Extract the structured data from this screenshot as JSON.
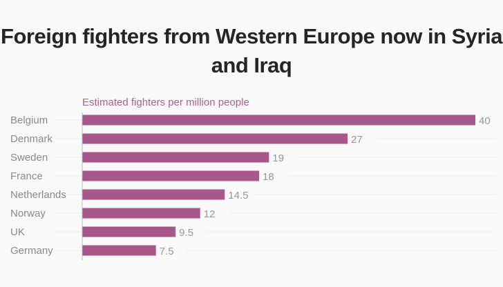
{
  "chart_data": {
    "type": "bar",
    "orientation": "horizontal",
    "title": "Foreign fighters from Western Europe now in Syria and Iraq",
    "subtitle": "Estimated fighters per million people",
    "categories": [
      "Belgium",
      "Denmark",
      "Sweden",
      "France",
      "Netherlands",
      "Norway",
      "UK",
      "Germany"
    ],
    "values": [
      40,
      27,
      19,
      18,
      14.5,
      12,
      9.5,
      7.5
    ],
    "value_labels": [
      "40",
      "27",
      "19",
      "18",
      "14.5",
      "12",
      "9.5",
      "7.5"
    ],
    "xlim": [
      0,
      40
    ],
    "bar_color": "#a8578a",
    "grid": true
  }
}
